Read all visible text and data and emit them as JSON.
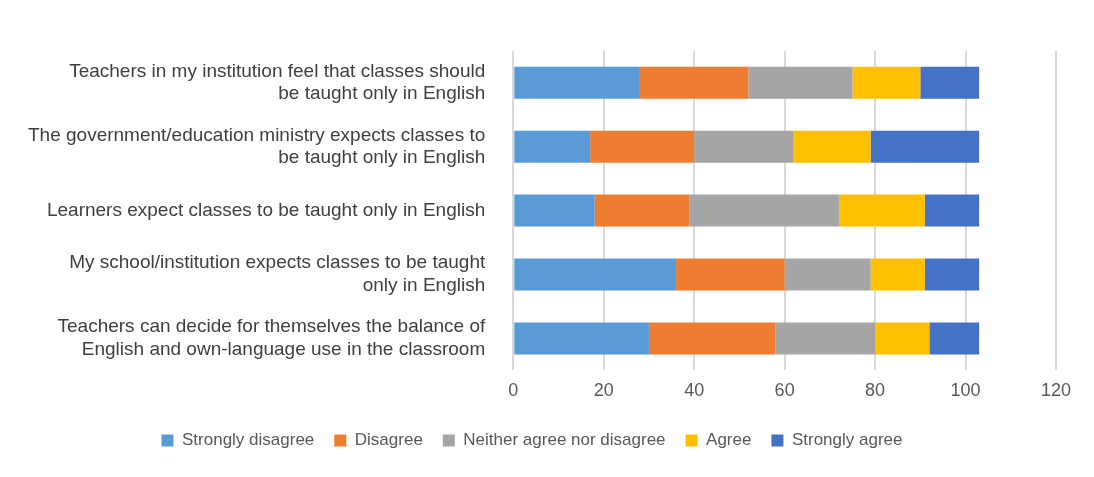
{
  "chart_data": {
    "type": "bar",
    "orientation": "horizontal",
    "stacked": true,
    "categories": [
      "Teachers in my institution feel that classes should be taught only in English",
      "The government/education ministry expects classes to be taught only in English",
      "Learners expect classes to be taught only in English",
      "My school/institution expects classes to be taught only in English",
      "Teachers can decide for themselves the balance of English and own-language use in the classroom"
    ],
    "series": [
      {
        "name": "Strongly disagree",
        "color": "#5b9bd5",
        "values": [
          28,
          17,
          18,
          36,
          30
        ]
      },
      {
        "name": "Disagree",
        "color": "#ed7d31",
        "values": [
          24,
          23,
          21,
          24,
          28
        ]
      },
      {
        "name": "Neither agree nor disagree",
        "color": "#a5a5a5",
        "values": [
          23,
          22,
          33,
          19,
          22
        ]
      },
      {
        "name": "Agree",
        "color": "#ffc000",
        "values": [
          15,
          17,
          19,
          12,
          12
        ]
      },
      {
        "name": "Strongly agree",
        "color": "#4472c4",
        "values": [
          13,
          24,
          12,
          12,
          11
        ]
      }
    ],
    "xlim": [
      0,
      120
    ],
    "xticks": [
      0,
      20,
      40,
      60,
      80,
      100,
      120
    ],
    "grid": "x",
    "legend": "bottom"
  }
}
